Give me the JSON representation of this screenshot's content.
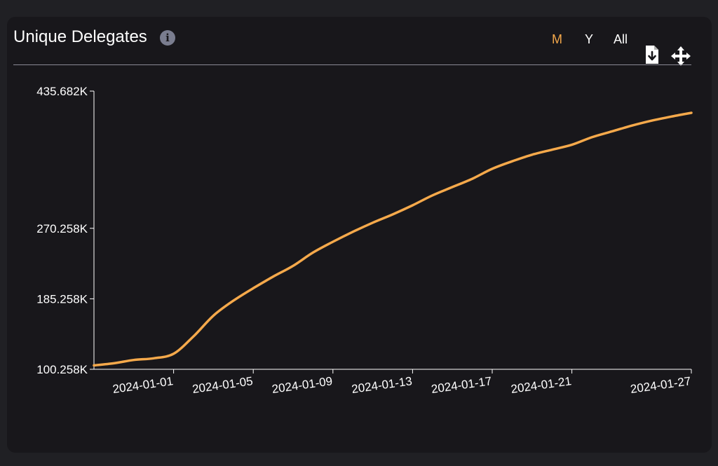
{
  "header": {
    "title": "Unique Delegates",
    "info_icon": "info-icon",
    "ranges": [
      {
        "label": "M",
        "active": true
      },
      {
        "label": "Y",
        "active": false
      },
      {
        "label": "All",
        "active": false
      }
    ],
    "download_icon": "file-download-icon",
    "move_icon": "move-arrows-icon"
  },
  "colors": {
    "line": "#f5a94b",
    "background": "#18171b",
    "axis": "#ffffff",
    "active_range": "#f5a94b"
  },
  "chart_data": {
    "type": "line",
    "title": "Unique Delegates",
    "xlabel": "",
    "ylabel": "",
    "y_ticks": [
      100258,
      185258,
      270258,
      435682
    ],
    "y_tick_labels": [
      "100.258K",
      "185.258K",
      "270.258K",
      "435.682K"
    ],
    "ylim": [
      100258,
      435682
    ],
    "x_ticks": [
      "2024-01-01",
      "2024-01-05",
      "2024-01-09",
      "2024-01-13",
      "2024-01-17",
      "2024-01-21",
      "2024-01-27"
    ],
    "xlim": [
      "2023-12-28",
      "2024-01-27"
    ],
    "grid": false,
    "legend": "none",
    "series": [
      {
        "x": [
          "2023-12-28",
          "2023-12-29",
          "2023-12-30",
          "2023-12-31",
          "2024-01-01",
          "2024-01-02",
          "2024-01-03",
          "2024-01-04",
          "2024-01-05",
          "2024-01-06",
          "2024-01-07",
          "2024-01-08",
          "2024-01-09",
          "2024-01-10",
          "2024-01-11",
          "2024-01-12",
          "2024-01-13",
          "2024-01-14",
          "2024-01-15",
          "2024-01-16",
          "2024-01-17",
          "2024-01-18",
          "2024-01-19",
          "2024-01-20",
          "2024-01-21",
          "2024-01-22",
          "2024-01-23",
          "2024-01-24",
          "2024-01-25",
          "2024-01-26",
          "2024-01-27"
        ],
        "y": [
          105000,
          107500,
          111500,
          113500,
          119000,
          140000,
          165000,
          183000,
          198000,
          212000,
          225000,
          241000,
          254000,
          266000,
          277000,
          287000,
          298000,
          310000,
          320000,
          330000,
          342000,
          351000,
          359000,
          365000,
          371000,
          380000,
          387000,
          394000,
          400000,
          405000,
          409500
        ]
      }
    ]
  }
}
